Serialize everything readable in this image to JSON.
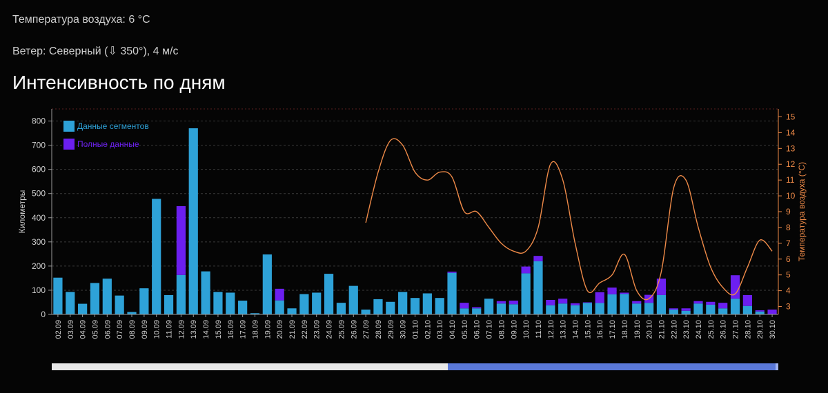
{
  "header": {
    "temperature_text": "Температура воздуха: 6 °C",
    "wind_text": "Ветер: Северный (⇩ 350°), 4 м/с"
  },
  "section_title": "Интенсивность по дням",
  "chart_data": {
    "type": "bar",
    "stacked": true,
    "categories": [
      "02.09",
      "03.09",
      "04.09",
      "05.09",
      "06.09",
      "07.09",
      "08.09",
      "09.09",
      "10.09",
      "11.09",
      "12.09",
      "13.09",
      "14.09",
      "15.09",
      "16.09",
      "17.09",
      "18.09",
      "19.09",
      "20.09",
      "21.09",
      "22.09",
      "23.09",
      "24.09",
      "25.09",
      "26.09",
      "27.09",
      "28.09",
      "29.09",
      "30.09",
      "01.10",
      "02.10",
      "03.10",
      "04.10",
      "05.10",
      "06.10",
      "07.10",
      "08.10",
      "09.10",
      "10.10",
      "11.10",
      "12.10",
      "13.10",
      "14.10",
      "15.10",
      "16.10",
      "17.10",
      "18.10",
      "19.10",
      "20.10",
      "21.10",
      "22.10",
      "23.10",
      "24.10",
      "25.10",
      "26.10",
      "27.10",
      "28.10",
      "29.10",
      "30.10"
    ],
    "series": [
      {
        "name": "Данные сегментов",
        "color": "#2ea2d8",
        "values": [
          152,
          93,
          44,
          130,
          148,
          78,
          10,
          108,
          478,
          80,
          163,
          770,
          178,
          93,
          90,
          57,
          5,
          248,
          58,
          25,
          84,
          90,
          168,
          48,
          118,
          20,
          63,
          52,
          93,
          68,
          87,
          68,
          172,
          25,
          25,
          65,
          45,
          42,
          170,
          220,
          38,
          45,
          38,
          48,
          47,
          83,
          85,
          45,
          48,
          80,
          20,
          15,
          45,
          40,
          25,
          65,
          35,
          12,
          0
        ]
      },
      {
        "name": "Полные данные",
        "color": "#6c1ff0",
        "values": [
          0,
          0,
          0,
          0,
          0,
          0,
          0,
          0,
          0,
          0,
          285,
          0,
          0,
          0,
          0,
          0,
          0,
          0,
          48,
          0,
          0,
          0,
          0,
          0,
          0,
          0,
          0,
          0,
          0,
          0,
          0,
          0,
          5,
          23,
          5,
          0,
          10,
          15,
          28,
          22,
          22,
          20,
          8,
          2,
          45,
          28,
          5,
          10,
          33,
          68,
          5,
          10,
          10,
          12,
          23,
          97,
          45,
          5,
          20
        ]
      }
    ],
    "line": {
      "name": "Температура воздуха",
      "color": "#ee8a48",
      "start_index": 25,
      "values": [
        8.3,
        11.5,
        13.5,
        13.2,
        11.5,
        11.0,
        11.5,
        11.2,
        9.0,
        9.0,
        8.0,
        7.0,
        6.5,
        6.5,
        8.0,
        12.0,
        11.0,
        7.0,
        4.0,
        4.5,
        5.0,
        6.3,
        4.0,
        3.5,
        5.2,
        10.5,
        11.0,
        8.0,
        5.5,
        4.2,
        3.8,
        5.5,
        7.2,
        6.5
      ]
    },
    "ylabel": "Километры",
    "ylabel_right": "Температура воздуха (°C)",
    "ylim": [
      0,
      850
    ],
    "yticks": [
      0,
      100,
      200,
      300,
      400,
      500,
      600,
      700,
      800
    ],
    "ylim_right": [
      2.5,
      15.5
    ],
    "yticks_right": [
      3,
      4,
      5,
      6,
      7,
      8,
      9,
      10,
      11,
      12,
      13,
      14,
      15
    ],
    "legend": [
      {
        "label": "Данные сегментов",
        "color": "#2ea2d8"
      },
      {
        "label": "Полные данные",
        "color": "#6c1ff0"
      }
    ],
    "legend_position": "top-left",
    "grid": true
  },
  "range_selector": {
    "selected_start": 0.545,
    "selected_end": 1.0
  }
}
